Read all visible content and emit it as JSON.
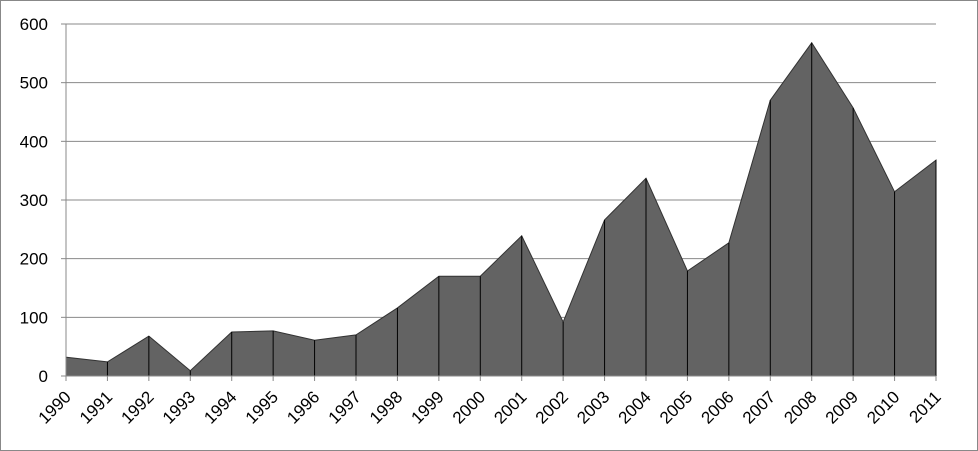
{
  "chart_data": {
    "type": "area",
    "categories": [
      "1990",
      "1991",
      "1992",
      "1993",
      "1994",
      "1995",
      "1996",
      "1997",
      "1998",
      "1999",
      "2000",
      "2001",
      "2002",
      "2003",
      "2004",
      "2005",
      "2006",
      "2007",
      "2008",
      "2009",
      "2010",
      "2011"
    ],
    "values": [
      32,
      24,
      68,
      9,
      75,
      77,
      61,
      70,
      116,
      170,
      170,
      239,
      92,
      266,
      337,
      179,
      227,
      470,
      568,
      457,
      314,
      368
    ],
    "color": "#636363",
    "ylim": [
      0,
      600
    ],
    "yticks": [
      0,
      100,
      200,
      300,
      400,
      500,
      600
    ],
    "grid": true,
    "drop_lines": true
  }
}
